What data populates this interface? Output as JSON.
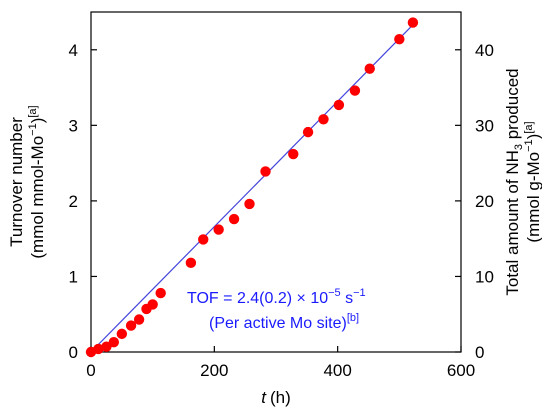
{
  "chart_data": {
    "type": "scatter",
    "xlabel_italic": "t",
    "xlabel_unit": "(h)",
    "ylabel_left_line1": "Turnover number",
    "ylabel_left_line2": "(mmol mmol-Mo",
    "ylabel_left_line2_sup": "−1",
    "ylabel_left_line2_end": ")",
    "ylabel_left_note": "[a]",
    "ylabel_right_line1_a": "Total amount of NH",
    "ylabel_right_line1_sub": "3",
    "ylabel_right_line1_b": " produced",
    "ylabel_right_line2": "(mmol g-Mo",
    "ylabel_right_line2_sup": "−1",
    "ylabel_right_line2_end": ")",
    "ylabel_right_note": "[a]",
    "xlim": [
      0,
      600
    ],
    "ylim_left": [
      0,
      4.5
    ],
    "ylim_right": [
      0,
      45
    ],
    "xticks": [
      "0",
      "200",
      "400",
      "600"
    ],
    "yticks_left": [
      "0",
      "1",
      "2",
      "3",
      "4"
    ],
    "yticks_right": [
      "0",
      "10",
      "20",
      "30",
      "40"
    ],
    "series": [
      {
        "marker_color": "#ff0000",
        "x": [
          0,
          12,
          25,
          37,
          50,
          65,
          78,
          90,
          100,
          113,
          162,
          182,
          207,
          232,
          257,
          283,
          328,
          352,
          377,
          402,
          428,
          452,
          500,
          522
        ],
        "y": [
          0.0,
          0.04,
          0.07,
          0.13,
          0.24,
          0.35,
          0.43,
          0.57,
          0.63,
          0.78,
          1.18,
          1.49,
          1.62,
          1.76,
          1.96,
          2.39,
          2.62,
          2.91,
          3.08,
          3.27,
          3.46,
          3.75,
          4.14,
          4.36
        ]
      }
    ],
    "fit_line": {
      "color": "#4444dd",
      "x": [
        0,
        522
      ],
      "y": [
        0,
        4.33
      ]
    },
    "annotation": {
      "line1_prefix": "TOF = 2.4(0.2) × 10",
      "line1_sup": "−5",
      "line1_suffix": " s",
      "line1_sup2": "−1",
      "line2": "(Per active Mo site)",
      "line2_sup": "[b]"
    }
  }
}
